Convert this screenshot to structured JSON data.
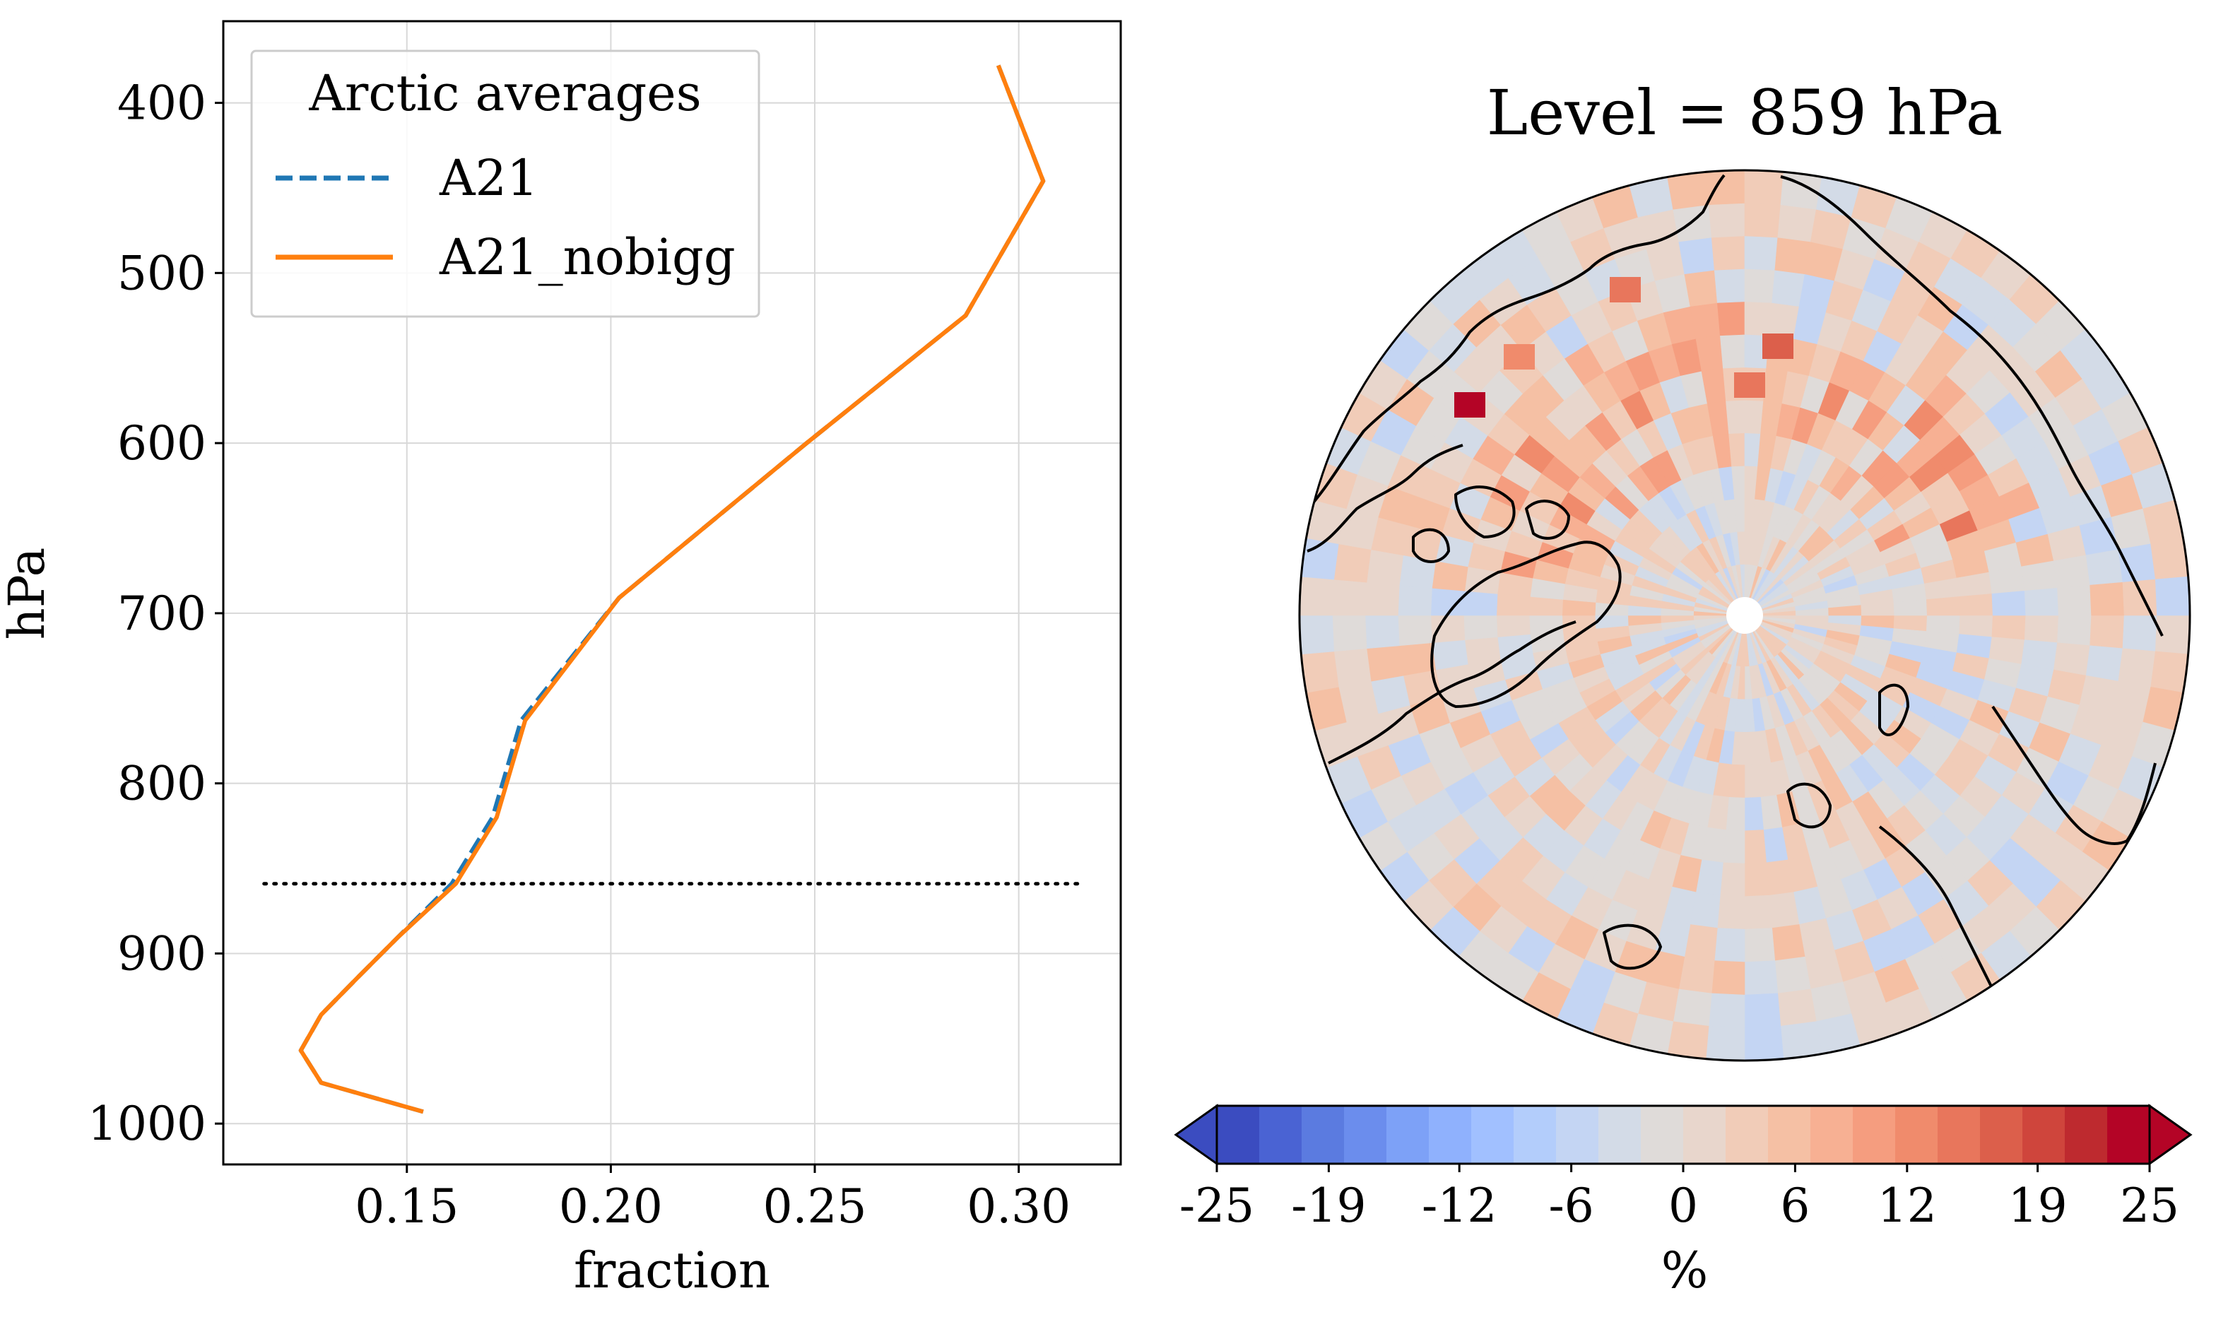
{
  "chart_data": [
    {
      "type": "line",
      "title": "",
      "xlabel": "fraction",
      "ylabel": "hPa",
      "xlim": [
        0.105,
        0.325
      ],
      "ylim": [
        1024,
        352
      ],
      "y_inverted": true,
      "grid": true,
      "xticks": [
        0.15,
        0.2,
        0.25,
        0.3
      ],
      "xtick_labels": [
        "0.15",
        "0.20",
        "0.25",
        "0.30"
      ],
      "yticks": [
        400,
        500,
        600,
        700,
        800,
        900,
        1000
      ],
      "ytick_labels": [
        "400",
        "500",
        "600",
        "700",
        "800",
        "900",
        "1000"
      ],
      "legend": {
        "title": "Arctic averages",
        "placement": "upper-left",
        "entries": [
          {
            "label": "A21",
            "color": "#1f77b4",
            "style": "dashed"
          },
          {
            "label": "A21_nobigg",
            "color": "#ff7f0e",
            "style": "solid"
          }
        ]
      },
      "series": [
        {
          "name": "A21",
          "color": "#1f77b4",
          "style": "dashed",
          "x": [
            0.295,
            0.306,
            0.287,
            0.248,
            0.202,
            0.178,
            0.171,
            0.161,
            0.148,
            0.138,
            0.129,
            0.124,
            0.129,
            0.154
          ],
          "y": [
            378,
            446,
            525,
            600,
            691,
            763,
            820,
            859,
            890,
            914,
            936,
            957,
            976,
            993
          ]
        },
        {
          "name": "A21_nobigg",
          "color": "#ff7f0e",
          "style": "solid",
          "x": [
            0.295,
            0.306,
            0.287,
            0.248,
            0.202,
            0.179,
            0.172,
            0.162,
            0.148,
            0.138,
            0.129,
            0.124,
            0.129,
            0.154
          ],
          "y": [
            378,
            446,
            525,
            600,
            691,
            763,
            820,
            859,
            890,
            914,
            936,
            957,
            976,
            993
          ]
        }
      ],
      "reference_line": {
        "y": 859,
        "x_range": [
          0.115,
          0.315
        ],
        "style": "dotted",
        "color": "#000000"
      }
    },
    {
      "type": "heatmap",
      "projection": "north-polar-stereographic",
      "title": "Level = 859 hPa",
      "colorbar": {
        "label": "%",
        "range": [
          -25,
          25
        ],
        "extend": "both",
        "ticks": [
          -25,
          -19,
          -12,
          -6,
          0,
          6,
          12,
          19,
          25
        ],
        "tick_labels": [
          "-25",
          "-19",
          "-12",
          "-6",
          "0",
          "6",
          "12",
          "19",
          "25"
        ],
        "colors": [
          "#3b4cc0",
          "#4a63d3",
          "#5b7be0",
          "#6b8ded",
          "#7da1f7",
          "#8fb1fd",
          "#a1c0ff",
          "#b3cdfb",
          "#c4d5f3",
          "#d3dbe7",
          "#dfdbd9",
          "#e8d6cc",
          "#f1ccb8",
          "#f5c0a4",
          "#f7b093",
          "#f59d7f",
          "#f08b6c",
          "#e8765c",
          "#dc5f4b",
          "#cf453c",
          "#be2a2f",
          "#b40426"
        ],
        "under_color": "#3b4cc0",
        "over_color": "#b40426"
      },
      "features": [
        "coastlines",
        "pole-mask"
      ]
    }
  ]
}
